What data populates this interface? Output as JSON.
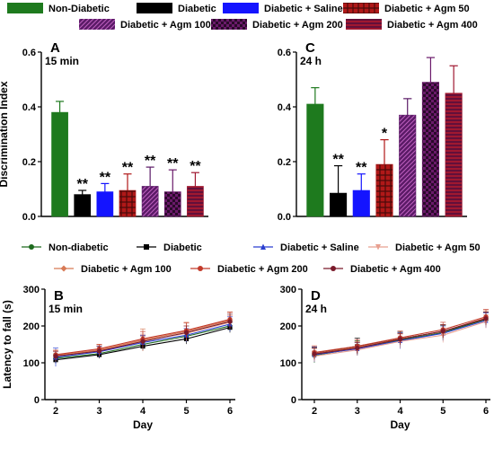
{
  "legend_top": [
    {
      "name": "Non-Diabetic",
      "color": "#1e7a1e",
      "pattern": "solid"
    },
    {
      "name": "Diabetic",
      "color": "#000000",
      "pattern": "solid"
    },
    {
      "name": "Diabetic + Saline",
      "color": "#1414ff",
      "pattern": "solid"
    },
    {
      "name": "Diabetic + Agm 50",
      "color": "#b01818",
      "pattern": "plaid"
    },
    {
      "name": "Diabetic + Agm 100",
      "color": "#5a1a66",
      "pattern": "diag"
    },
    {
      "name": "Diabetic + Agm 200",
      "color": "#6a1a6a",
      "pattern": "check"
    },
    {
      "name": "Diabetic + Agm 400",
      "color": "#a01830",
      "pattern": "hlines"
    }
  ],
  "legend_bottom": [
    {
      "name": "Non-diabetic",
      "color": "#1e6b1e",
      "marker": "circle"
    },
    {
      "name": "Diabetic",
      "color": "#000000",
      "marker": "square"
    },
    {
      "name": "Diabetic + Saline",
      "color": "#2a3fd0",
      "marker": "triangle"
    },
    {
      "name": "Diabetic + Agm 50",
      "color": "#e8a090",
      "marker": "triangle-down"
    },
    {
      "name": "Diabetic + Agm 100",
      "color": "#d87a55",
      "marker": "diamond"
    },
    {
      "name": "Diabetic + Agm 200",
      "color": "#c23a2a",
      "marker": "circle"
    },
    {
      "name": "Diabetic + Agm 400",
      "color": "#7a1a2a",
      "marker": "circle"
    }
  ],
  "chart_data": [
    {
      "panel": "A",
      "type": "bar",
      "subtitle": "15 min",
      "ylabel": "Discrimination Index",
      "ylim": [
        0,
        0.6
      ],
      "yticks": [
        "0.0",
        "0.2",
        "0.4",
        "0.6"
      ],
      "categories": [
        "Non-Diabetic",
        "Diabetic",
        "Diabetic + Saline",
        "Diabetic + Agm 50",
        "Diabetic + Agm 100",
        "Diabetic + Agm 200",
        "Diabetic + Agm 400"
      ],
      "values": [
        0.38,
        0.08,
        0.09,
        0.095,
        0.11,
        0.09,
        0.11
      ],
      "errors": [
        0.04,
        0.015,
        0.03,
        0.06,
        0.07,
        0.08,
        0.05
      ],
      "annotations": [
        "",
        "**",
        "**",
        "**",
        "**",
        "**",
        "**"
      ]
    },
    {
      "panel": "C",
      "type": "bar",
      "subtitle": "24 h",
      "ylim": [
        0,
        0.6
      ],
      "yticks": [
        "0.0",
        "0.2",
        "0.4",
        "0.6"
      ],
      "categories": [
        "Non-Diabetic",
        "Diabetic",
        "Diabetic + Saline",
        "Diabetic + Agm 50",
        "Diabetic + Agm 100",
        "Diabetic + Agm 200",
        "Diabetic + Agm 400"
      ],
      "values": [
        0.41,
        0.085,
        0.095,
        0.19,
        0.37,
        0.49,
        0.45
      ],
      "errors": [
        0.06,
        0.1,
        0.06,
        0.09,
        0.06,
        0.09,
        0.1
      ],
      "annotations": [
        "",
        "**",
        "**",
        "*",
        "",
        "",
        ""
      ]
    },
    {
      "panel": "B",
      "type": "line",
      "subtitle": "15 min",
      "xlabel": "Day",
      "ylabel": "Latency to fall (s)",
      "ylim": [
        0,
        300
      ],
      "yticks": [
        "0",
        "100",
        "200",
        "300"
      ],
      "x": [
        2,
        3,
        4,
        5,
        6
      ],
      "series": [
        {
          "name": "Non-diabetic",
          "values": [
            112,
            125,
            150,
            172,
            200
          ],
          "err": [
            12,
            10,
            14,
            15,
            15
          ]
        },
        {
          "name": "Diabetic",
          "values": [
            108,
            122,
            145,
            165,
            196
          ],
          "err": [
            10,
            10,
            12,
            14,
            14
          ]
        },
        {
          "name": "Diabetic + Saline",
          "values": [
            115,
            130,
            155,
            175,
            205
          ],
          "err": [
            25,
            15,
            20,
            18,
            20
          ]
        },
        {
          "name": "Diabetic + Agm 50",
          "values": [
            118,
            133,
            160,
            180,
            210
          ],
          "err": [
            15,
            14,
            18,
            20,
            18
          ]
        },
        {
          "name": "Diabetic + Agm 100",
          "values": [
            120,
            135,
            162,
            185,
            215
          ],
          "err": [
            14,
            15,
            30,
            25,
            22
          ]
        },
        {
          "name": "Diabetic + Agm 200",
          "values": [
            122,
            138,
            165,
            188,
            218
          ],
          "err": [
            12,
            12,
            20,
            20,
            20
          ]
        },
        {
          "name": "Diabetic + Agm 400",
          "values": [
            118,
            132,
            158,
            182,
            212
          ],
          "err": [
            12,
            12,
            15,
            18,
            20
          ]
        }
      ]
    },
    {
      "panel": "D",
      "type": "line",
      "subtitle": "24 h",
      "xlabel": "Day",
      "ylim": [
        0,
        300
      ],
      "yticks": [
        "0",
        "100",
        "200",
        "300"
      ],
      "x": [
        2,
        3,
        4,
        5,
        6
      ],
      "series": [
        {
          "name": "Non-diabetic",
          "values": [
            120,
            140,
            162,
            182,
            218
          ],
          "err": [
            20,
            20,
            20,
            20,
            20
          ]
        },
        {
          "name": "Diabetic",
          "values": [
            125,
            145,
            165,
            185,
            220
          ],
          "err": [
            18,
            22,
            20,
            18,
            18
          ]
        },
        {
          "name": "Diabetic + Saline",
          "values": [
            122,
            138,
            160,
            180,
            215
          ],
          "err": [
            20,
            18,
            22,
            20,
            20
          ]
        },
        {
          "name": "Diabetic + Agm 50",
          "values": [
            118,
            135,
            158,
            175,
            212
          ],
          "err": [
            15,
            15,
            18,
            20,
            18
          ]
        },
        {
          "name": "Diabetic + Agm 100",
          "values": [
            125,
            142,
            165,
            185,
            222
          ],
          "err": [
            15,
            15,
            15,
            18,
            20
          ]
        },
        {
          "name": "Diabetic + Agm 200",
          "values": [
            128,
            145,
            168,
            190,
            225
          ],
          "err": [
            18,
            18,
            18,
            20,
            20
          ]
        },
        {
          "name": "Diabetic + Agm 400",
          "values": [
            124,
            140,
            164,
            186,
            220
          ],
          "err": [
            15,
            15,
            15,
            18,
            18
          ]
        }
      ]
    }
  ]
}
